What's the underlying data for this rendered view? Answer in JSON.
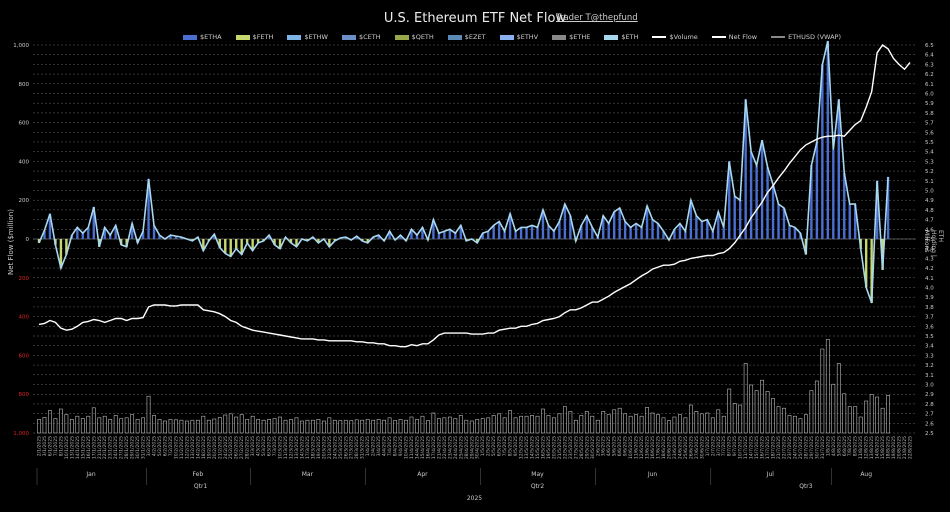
{
  "chart_data": {
    "type": "bar",
    "title": "U.S. Ethereum ETF Net Flow",
    "credit": "Trader T@thepfund",
    "ylabel": "Net Flow ($million)",
    "y2label": "ETH Holding | Millions",
    "ylim": [
      -1000,
      1000
    ],
    "y2lim": [
      2.5,
      6.5
    ],
    "left_ticks": [
      "1,000",
      "800",
      "600",
      "400",
      "200",
      "0",
      "200",
      "400",
      "600",
      "800",
      "1,000"
    ],
    "right_ticks": [
      "6.5",
      "6.4",
      "6.3",
      "6.2",
      "6.1",
      "6.0",
      "5.9",
      "5.8",
      "5.7",
      "5.6",
      "5.5",
      "5.4",
      "5.3",
      "5.2",
      "5.1",
      "5.0",
      "4.9",
      "4.8",
      "4.7",
      "4.6",
      "4.5",
      "4.4",
      "4.3",
      "4.2",
      "4.1",
      "4.0",
      "3.9",
      "3.8",
      "3.7",
      "3.6",
      "3.5",
      "3.4",
      "3.3",
      "3.2",
      "3.1",
      "3.0",
      "2.9",
      "2.8",
      "2.7",
      "2.6",
      "2.5"
    ],
    "legend": [
      "$ETHA",
      "$FETH",
      "$ETHW",
      "$CETH",
      "$QETH",
      "$EZET",
      "$ETHV",
      "$ETHE",
      "$ETH",
      "$Volume",
      "Net Flow",
      "ETHUSD (VWAP)"
    ],
    "legend_colors": [
      "#4a6fd1",
      "#c5d86d",
      "#7fb4e8",
      "#6d8fc7",
      "#9aa84a",
      "#5a8ab5",
      "#8ab0f0",
      "#888888",
      "#a8d8f0",
      "#ffffff",
      "#ffffff",
      "#888888"
    ],
    "x_dates": [
      "2/1/2025",
      "3/1/2025",
      "6/1/2025",
      "7/1/2025",
      "8/1/2025",
      "10/1/2025",
      "13/1/2025",
      "14/1/2025",
      "15/1/2025",
      "16/1/2025",
      "17/1/2025",
      "21/1/2025",
      "22/1/2025",
      "23/1/2025",
      "24/1/2025",
      "27/1/2025",
      "28/1/2025",
      "29/1/2025",
      "30/1/2025",
      "31/1/2025",
      "3/2/2025",
      "4/2/2025",
      "5/2/2025",
      "6/2/2025",
      "7/2/2025",
      "10/2/2025",
      "11/2/2025",
      "12/2/2025",
      "13/2/2025",
      "14/2/2025",
      "18/2/2025",
      "19/2/2025",
      "20/2/2025",
      "21/2/2025",
      "24/2/2025",
      "25/2/2025",
      "26/2/2025",
      "27/2/2025",
      "28/2/2025",
      "3/3/2025",
      "4/3/2025",
      "5/3/2025",
      "6/3/2025",
      "7/3/2025",
      "10/3/2025",
      "11/3/2025",
      "12/3/2025",
      "13/3/2025",
      "14/3/2025",
      "17/3/2025",
      "18/3/2025",
      "19/3/2025",
      "20/3/2025",
      "21/3/2025",
      "24/3/2025",
      "25/3/2025",
      "26/3/2025",
      "27/3/2025",
      "28/3/2025",
      "31/3/2025",
      "1/4/2025",
      "2/4/2025",
      "3/4/2025",
      "4/4/2025",
      "7/4/2025",
      "8/4/2025",
      "9/4/2025",
      "10/4/2025",
      "11/4/2025",
      "14/4/2025",
      "15/4/2025",
      "16/4/2025",
      "17/4/2025",
      "21/4/2025",
      "22/4/2025",
      "23/4/2025",
      "24/4/2025",
      "25/4/2025",
      "28/4/2025",
      "29/4/2025",
      "30/4/2025",
      "1/5/2025",
      "2/5/2025",
      "5/5/2025",
      "6/5/2025",
      "7/5/2025",
      "8/5/2025",
      "9/5/2025",
      "12/5/2025",
      "13/5/2025",
      "14/5/2025",
      "15/5/2025",
      "16/5/2025",
      "19/5/2025",
      "20/5/2025",
      "21/5/2025",
      "22/5/2025",
      "23/5/2025",
      "27/5/2025",
      "28/5/2025",
      "29/5/2025",
      "30/5/2025",
      "2/6/2025",
      "3/6/2025",
      "4/6/2025",
      "5/6/2025",
      "6/6/2025",
      "9/6/2025",
      "10/6/2025",
      "11/6/2025",
      "12/6/2025",
      "13/6/2025",
      "16/6/2025",
      "17/6/2025",
      "18/6/2025",
      "20/6/2025",
      "23/6/2025",
      "24/6/2025",
      "25/6/2025",
      "26/6/2025",
      "27/6/2025",
      "30/6/2025",
      "1/7/2025",
      "2/7/2025",
      "3/7/2025",
      "7/7/2025",
      "8/7/2025",
      "9/7/2025",
      "10/7/2025",
      "11/7/2025",
      "14/7/2025",
      "15/7/2025",
      "16/7/2025",
      "17/7/2025",
      "18/7/2025",
      "21/7/2025",
      "22/7/2025",
      "23/7/2025",
      "24/7/2025",
      "25/7/2025",
      "28/7/2025",
      "29/7/2025",
      "30/7/2025",
      "31/7/2025",
      "1/8/2025",
      "4/8/2025",
      "5/8/2025",
      "6/8/2025",
      "7/8/2025",
      "8/8/2025",
      "11/8/2025",
      "12/8/2025",
      "13/8/2025",
      "14/8/2025",
      "15/8/2025",
      "18/8/2025",
      "19/8/2025",
      "20/8/2025",
      "21/8/2025",
      "22/8/2025"
    ],
    "months": [
      "Jan",
      "Feb",
      "Mar",
      "Apr",
      "May",
      "Jun",
      "Jul",
      "Aug"
    ],
    "quarters": [
      "Qtr1",
      "Qtr2",
      "Qtr3"
    ],
    "year": "2025",
    "net_flow": [
      -20,
      45,
      130,
      -30,
      -150,
      -80,
      20,
      60,
      30,
      60,
      165,
      -40,
      60,
      20,
      70,
      -30,
      -40,
      80,
      -20,
      40,
      310,
      70,
      20,
      0,
      20,
      15,
      10,
      0,
      -10,
      10,
      -60,
      -10,
      25,
      -45,
      -75,
      -90,
      -50,
      -80,
      -20,
      -60,
      -20,
      -10,
      20,
      -30,
      -50,
      10,
      -20,
      -40,
      0,
      -10,
      10,
      -20,
      0,
      -40,
      -10,
      5,
      10,
      -5,
      15,
      -10,
      -20,
      10,
      20,
      -10,
      40,
      -5,
      20,
      -10,
      50,
      20,
      60,
      -5,
      100,
      30,
      40,
      50,
      30,
      70,
      -10,
      0,
      -20,
      30,
      40,
      70,
      90,
      40,
      130,
      40,
      60,
      60,
      70,
      60,
      150,
      70,
      40,
      90,
      180,
      120,
      -10,
      70,
      120,
      60,
      10,
      120,
      80,
      140,
      160,
      90,
      60,
      80,
      60,
      170,
      100,
      80,
      40,
      -5,
      50,
      80,
      40,
      200,
      120,
      90,
      100,
      40,
      140,
      60,
      400,
      220,
      200,
      720,
      450,
      380,
      510,
      370,
      280,
      180,
      160,
      70,
      60,
      30,
      -80,
      380,
      500,
      900,
      1020,
      460,
      720,
      340,
      180,
      180,
      -50,
      -250,
      -330,
      300,
      -160,
      320
    ],
    "eth_holding": [
      3.62,
      3.63,
      3.66,
      3.64,
      3.58,
      3.56,
      3.57,
      3.6,
      3.64,
      3.65,
      3.67,
      3.66,
      3.64,
      3.66,
      3.68,
      3.68,
      3.66,
      3.68,
      3.68,
      3.69,
      3.8,
      3.82,
      3.82,
      3.82,
      3.81,
      3.81,
      3.82,
      3.82,
      3.82,
      3.82,
      3.77,
      3.76,
      3.75,
      3.73,
      3.7,
      3.66,
      3.64,
      3.6,
      3.58,
      3.56,
      3.55,
      3.54,
      3.53,
      3.52,
      3.51,
      3.5,
      3.49,
      3.48,
      3.47,
      3.47,
      3.47,
      3.46,
      3.46,
      3.45,
      3.45,
      3.45,
      3.45,
      3.45,
      3.44,
      3.44,
      3.43,
      3.43,
      3.42,
      3.42,
      3.4,
      3.4,
      3.39,
      3.39,
      3.41,
      3.4,
      3.42,
      3.42,
      3.46,
      3.51,
      3.53,
      3.53,
      3.53,
      3.53,
      3.53,
      3.52,
      3.52,
      3.52,
      3.53,
      3.53,
      3.56,
      3.57,
      3.58,
      3.58,
      3.6,
      3.6,
      3.62,
      3.63,
      3.66,
      3.67,
      3.68,
      3.7,
      3.74,
      3.77,
      3.77,
      3.79,
      3.82,
      3.85,
      3.85,
      3.88,
      3.91,
      3.95,
      3.98,
      4.01,
      4.04,
      4.08,
      4.12,
      4.15,
      4.19,
      4.21,
      4.23,
      4.23,
      4.24,
      4.27,
      4.28,
      4.3,
      4.31,
      4.32,
      4.33,
      4.33,
      4.35,
      4.36,
      4.4,
      4.46,
      4.54,
      4.62,
      4.72,
      4.8,
      4.88,
      4.98,
      5.05,
      5.13,
      5.2,
      5.28,
      5.35,
      5.42,
      5.47,
      5.5,
      5.53,
      5.55,
      5.56,
      5.56,
      5.57,
      5.56,
      5.62,
      5.68,
      5.72,
      5.86,
      6.02,
      6.42,
      6.5,
      6.46,
      6.36,
      6.3,
      6.25,
      6.32
    ]
  }
}
